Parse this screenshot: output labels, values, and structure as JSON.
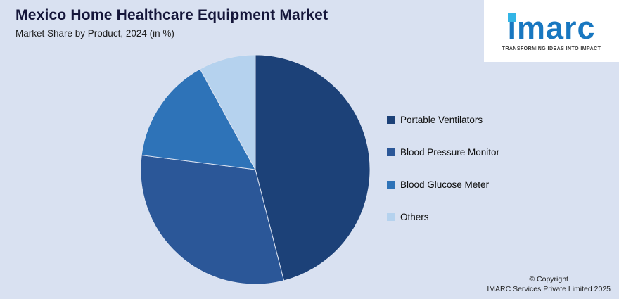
{
  "header": {
    "title": "Mexico Home Healthcare Equipment Market",
    "subtitle": "Market Share by Product, 2024 (in %)"
  },
  "logo": {
    "brand": "imarc",
    "tagline": "TRANSFORMING IDEAS INTO IMPACT",
    "brand_color": "#1877c0",
    "accent_color": "#33b5e6"
  },
  "chart_data": {
    "type": "pie",
    "title": "Mexico Home Healthcare Equipment Market",
    "subtitle": "Market Share by Product, 2024 (in %)",
    "labels": [
      "Portable Ventilators",
      "Blood Pressure Monitor",
      "Blood Glucose Meter",
      "Others"
    ],
    "values": [
      46,
      31,
      15,
      8
    ],
    "unit": "%",
    "colors": [
      "#1c4178",
      "#2b5798",
      "#2e73b8",
      "#b5d2ee"
    ],
    "legend_position": "right",
    "start_angle_deg": 0,
    "direction": "clockwise",
    "values_shown_on_chart": false
  },
  "footer": {
    "copyright_line1": "© Copyright",
    "copyright_line2": "IMARC Services Private Limited 2025"
  },
  "colors": {
    "background": "#d9e1f1",
    "title_text": "#15163a",
    "slice_separator": "#dce3f1"
  }
}
